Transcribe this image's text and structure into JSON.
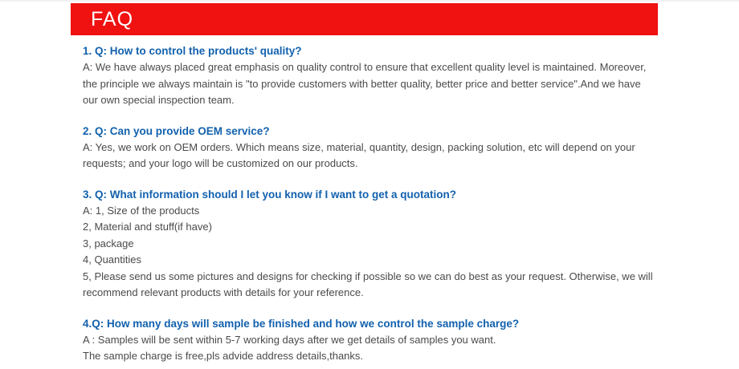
{
  "header": {
    "title": "FAQ"
  },
  "colors": {
    "header_bg": "#f01111",
    "header_text": "#ffffff",
    "question_text": "#1261ae",
    "answer_text": "#4a4a4a",
    "page_bg": "#ffffff"
  },
  "faq": {
    "items": [
      {
        "question": "1. Q: How to control the products' quality?",
        "answer_lines": [
          "A: We have always placed great emphasis on quality control to ensure that excellent quality level is maintained. Moreover, the principle we always maintain is \"to provide customers with better quality, better price and better service\".And we have our own special inspection team."
        ]
      },
      {
        "question": "2. Q: Can you provide OEM service?",
        "answer_lines": [
          "A: Yes, we work on OEM orders. Which means size, material, quantity, design, packing solution, etc will depend on your requests; and your logo will be customized on our products."
        ]
      },
      {
        "question": "3. Q: What information should I let you know if I want to get a quotation?",
        "answer_lines": [
          "A: 1, Size of the products",
          "2, Material and stuff(if have)",
          "3, package",
          "4, Quantities",
          "5, Please send us some pictures and designs for checking if possible so we can do best as your request. Otherwise, we will recommend relevant products with details for your reference."
        ]
      },
      {
        "question": "4.Q: How many days will sample be finished and how we control the sample charge?",
        "answer_lines": [
          "A :  Samples will be sent within 5-7 working days after we get details of samples you want.",
          "The sample charge is free,pls advide address details,thanks."
        ]
      }
    ]
  }
}
